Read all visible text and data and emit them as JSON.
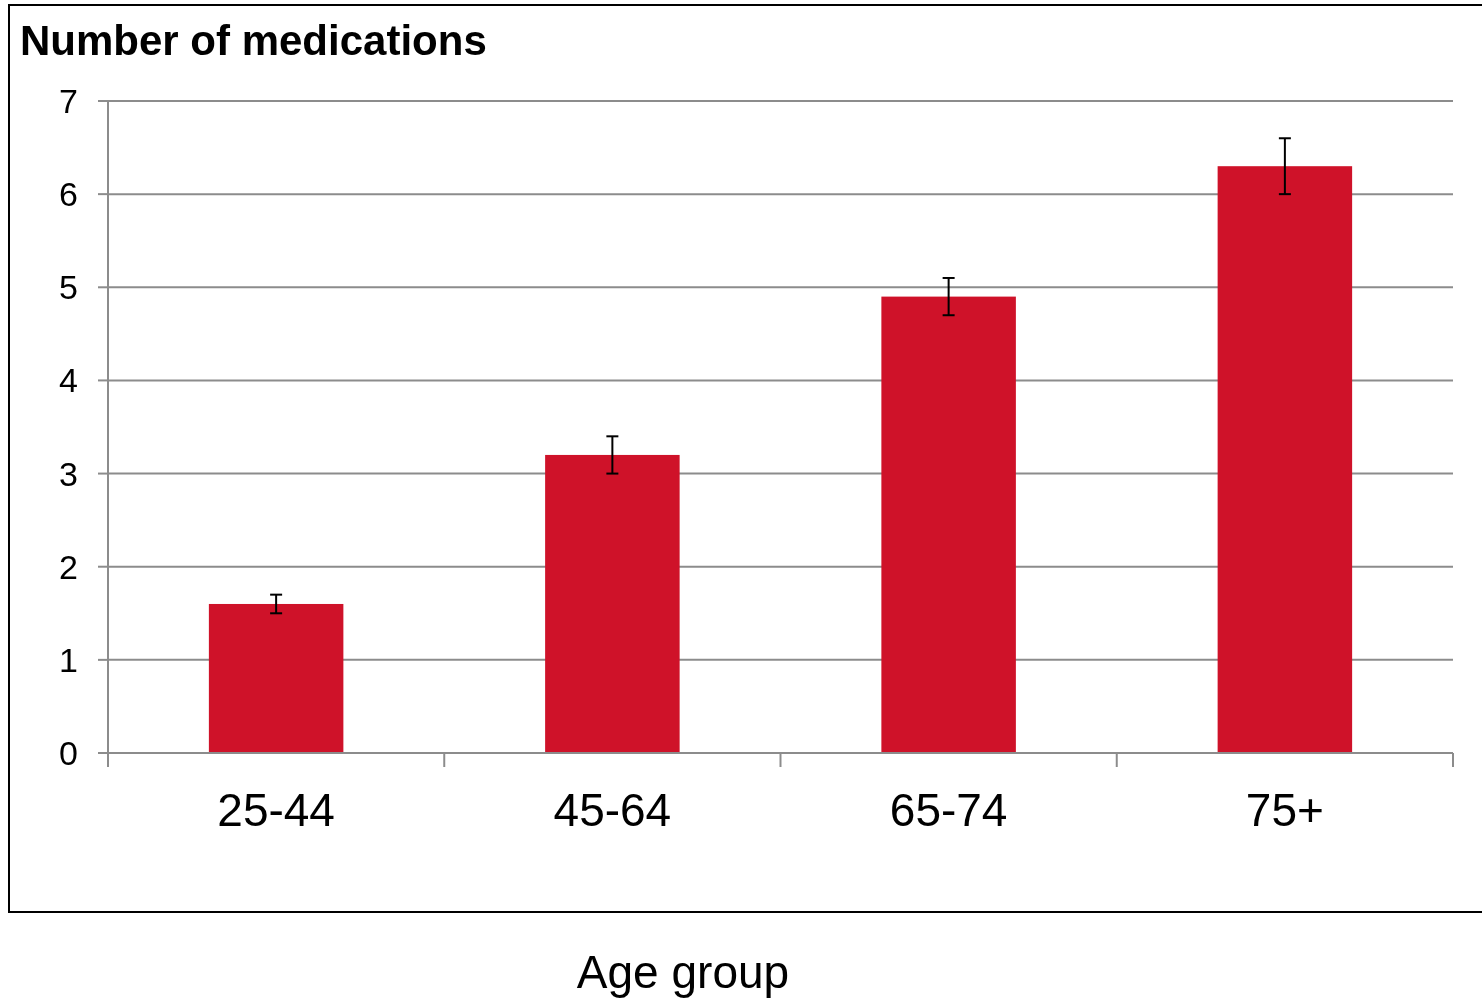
{
  "chart_data": {
    "type": "bar",
    "ylabel": "Number of medications",
    "xlabel": "Age group",
    "categories": [
      "25-44",
      "45-64",
      "65-74",
      "75+"
    ],
    "values": [
      1.6,
      3.2,
      4.9,
      6.3
    ],
    "errors": [
      0.1,
      0.2,
      0.2,
      0.3
    ],
    "color": "#cf1229",
    "ylim": [
      0,
      7
    ],
    "yticks": [
      0,
      1,
      2,
      3,
      4,
      5,
      6,
      7
    ],
    "grid": "y"
  }
}
